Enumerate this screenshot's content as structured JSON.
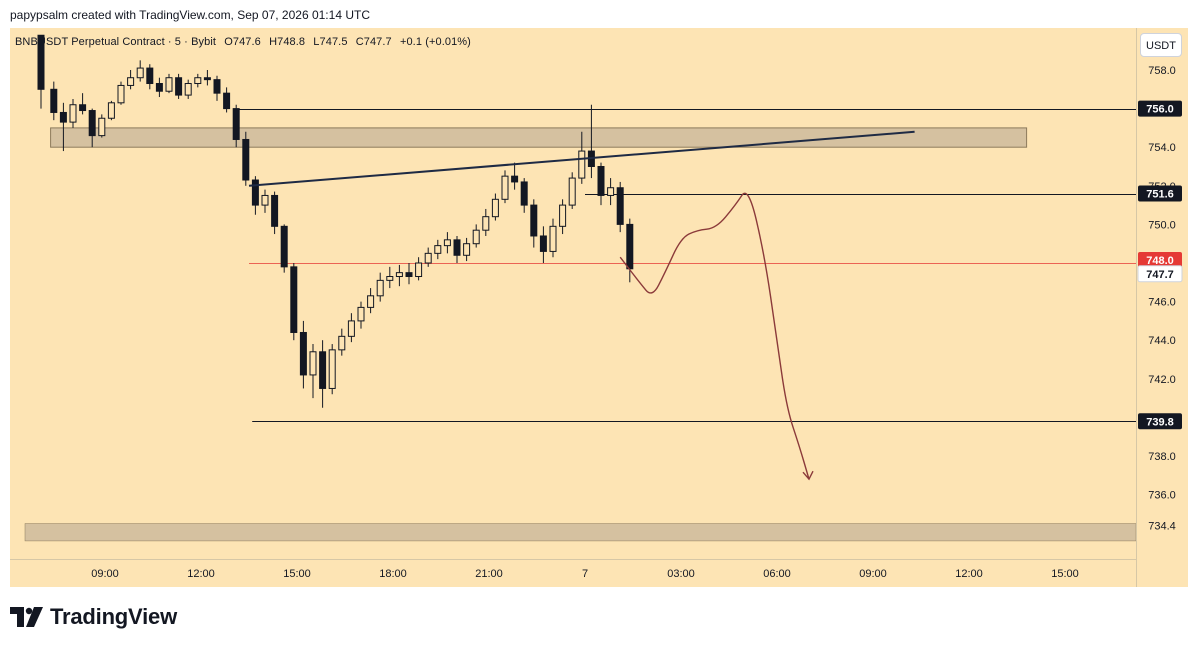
{
  "header": {
    "credit": "papypsalm created with TradingView.com, Sep 07, 2026 01:14 UTC"
  },
  "legend": {
    "symbol": "BNBUSDT Perpetual Contract · 5 · Bybit",
    "open": "O747.6",
    "high": "H748.8",
    "low": "L747.5",
    "close": "C747.7",
    "change": "+0.1 (+0.01%)"
  },
  "currency_button": "USDT",
  "footer": {
    "brand": "TradingView"
  },
  "colors": {
    "background": "#fde4b4",
    "candle_up": "#131722",
    "candle_down": "#131722",
    "zone": "#d5c1a0",
    "last_price_line": "#e53935",
    "drawing": "#8b3a3a",
    "trendline": "#1e2a44"
  },
  "chart_data": {
    "type": "candlestick",
    "symbol": "BNBUSDT",
    "interval": "5",
    "ylim": [
      733.6,
      759.8
    ],
    "y_ticks": [
      758.0,
      754.0,
      752.0,
      750.0,
      746.0,
      744.0,
      742.0,
      738.0,
      736.0,
      734.4
    ],
    "x_ticks": [
      "09:00",
      "12:00",
      "15:00",
      "18:00",
      "21:00",
      "7",
      "03:00",
      "06:00",
      "09:00",
      "12:00",
      "15:00"
    ],
    "price_levels": [
      {
        "value": 756.0,
        "label": "756.0",
        "style": "dark"
      },
      {
        "value": 751.6,
        "label": "751.6",
        "style": "dark"
      },
      {
        "value": 748.0,
        "label": "748.0",
        "style": "red"
      },
      {
        "value": 747.7,
        "label": "747.7",
        "style": "light"
      },
      {
        "value": 739.8,
        "label": "739.8",
        "style": "dark"
      }
    ],
    "zones": [
      {
        "from_hour": 7.3,
        "to_hour": 37.8,
        "low": 754.0,
        "high": 755.0
      },
      {
        "from_hour": 6.5,
        "to_hour": 41.6,
        "low": 733.6,
        "high": 734.5
      }
    ],
    "trendline": {
      "start": [
        13.5,
        752.0
      ],
      "end": [
        34.3,
        754.8
      ]
    },
    "projection_path": [
      [
        25.1,
        748.3
      ],
      [
        25.7,
        747.0
      ],
      [
        26.1,
        746.2
      ],
      [
        26.5,
        747.5
      ],
      [
        27.0,
        749.3
      ],
      [
        27.5,
        749.7
      ],
      [
        28.1,
        749.8
      ],
      [
        28.7,
        751.0
      ],
      [
        29.1,
        752.0
      ],
      [
        29.6,
        748.5
      ],
      [
        30.0,
        744.0
      ],
      [
        30.3,
        740.5
      ],
      [
        30.7,
        738.5
      ],
      [
        31.0,
        736.8
      ]
    ],
    "candles": [
      [
        7.0,
        759.8,
        759.8,
        756.0,
        757.0
      ],
      [
        7.4,
        757.0,
        757.4,
        755.4,
        755.8
      ],
      [
        7.7,
        755.8,
        756.3,
        753.8,
        755.3
      ],
      [
        8.0,
        755.3,
        756.5,
        755.0,
        756.2
      ],
      [
        8.3,
        756.2,
        756.8,
        755.7,
        755.9
      ],
      [
        8.6,
        755.9,
        756.0,
        754.0,
        754.6
      ],
      [
        8.9,
        754.6,
        755.7,
        754.5,
        755.5
      ],
      [
        9.2,
        755.5,
        756.4,
        755.4,
        756.3
      ],
      [
        9.5,
        756.3,
        757.4,
        756.2,
        757.2
      ],
      [
        9.8,
        757.2,
        758.0,
        757.0,
        757.6
      ],
      [
        10.1,
        757.6,
        758.5,
        757.4,
        758.1
      ],
      [
        10.4,
        758.1,
        758.3,
        757.0,
        757.3
      ],
      [
        10.7,
        757.3,
        757.6,
        756.6,
        756.9
      ],
      [
        11.0,
        756.9,
        757.8,
        756.8,
        757.6
      ],
      [
        11.3,
        757.6,
        757.8,
        756.5,
        756.7
      ],
      [
        11.6,
        756.7,
        757.5,
        756.5,
        757.3
      ],
      [
        11.9,
        757.3,
        757.8,
        757.1,
        757.6
      ],
      [
        12.2,
        757.6,
        758.0,
        757.2,
        757.5
      ],
      [
        12.5,
        757.5,
        757.7,
        756.4,
        756.8
      ],
      [
        12.8,
        756.8,
        757.1,
        755.8,
        756.0
      ],
      [
        13.1,
        756.0,
        756.2,
        754.0,
        754.4
      ],
      [
        13.4,
        754.4,
        754.8,
        752.0,
        752.3
      ],
      [
        13.7,
        752.3,
        752.5,
        750.5,
        751.0
      ],
      [
        14.0,
        751.0,
        751.8,
        750.6,
        751.5
      ],
      [
        14.3,
        751.5,
        751.7,
        749.5,
        749.9
      ],
      [
        14.6,
        749.9,
        750.0,
        747.5,
        747.8
      ],
      [
        14.9,
        747.8,
        748.0,
        744.0,
        744.4
      ],
      [
        15.2,
        744.4,
        745.0,
        741.5,
        742.2
      ],
      [
        15.5,
        742.2,
        743.8,
        741.0,
        743.4
      ],
      [
        15.8,
        743.4,
        744.0,
        740.5,
        741.5
      ],
      [
        16.1,
        741.5,
        743.8,
        741.2,
        743.5
      ],
      [
        16.4,
        743.5,
        744.6,
        743.2,
        744.2
      ],
      [
        16.7,
        744.2,
        745.4,
        743.9,
        745.0
      ],
      [
        17.0,
        745.0,
        746.0,
        744.6,
        745.7
      ],
      [
        17.3,
        745.7,
        746.7,
        745.4,
        746.3
      ],
      [
        17.6,
        746.3,
        747.5,
        746.0,
        747.1
      ],
      [
        17.9,
        747.1,
        747.8,
        746.7,
        747.3
      ],
      [
        18.2,
        747.3,
        747.9,
        746.8,
        747.5
      ],
      [
        18.5,
        747.5,
        748.0,
        746.9,
        747.3
      ],
      [
        18.8,
        747.3,
        748.3,
        747.1,
        748.0
      ],
      [
        19.1,
        748.0,
        748.8,
        747.8,
        748.5
      ],
      [
        19.4,
        748.5,
        749.2,
        748.2,
        748.9
      ],
      [
        19.7,
        748.9,
        749.6,
        748.5,
        749.2
      ],
      [
        20.0,
        749.2,
        749.4,
        748.0,
        748.4
      ],
      [
        20.3,
        748.4,
        749.3,
        748.1,
        749.0
      ],
      [
        20.6,
        749.0,
        750.0,
        748.8,
        749.7
      ],
      [
        20.9,
        749.7,
        750.8,
        749.4,
        750.4
      ],
      [
        21.2,
        750.4,
        751.6,
        750.2,
        751.3
      ],
      [
        21.5,
        751.3,
        752.8,
        751.1,
        752.5
      ],
      [
        21.8,
        752.5,
        753.2,
        751.8,
        752.2
      ],
      [
        22.1,
        752.2,
        752.4,
        750.6,
        751.0
      ],
      [
        22.4,
        751.0,
        751.3,
        748.8,
        749.4
      ],
      [
        22.7,
        749.4,
        749.9,
        748.0,
        748.6
      ],
      [
        23.0,
        748.6,
        750.3,
        748.3,
        749.9
      ],
      [
        23.3,
        749.9,
        751.3,
        749.5,
        751.0
      ],
      [
        23.6,
        751.0,
        752.7,
        750.8,
        752.4
      ],
      [
        23.9,
        752.4,
        754.8,
        752.1,
        753.8
      ],
      [
        24.2,
        753.8,
        756.2,
        752.4,
        753.0
      ],
      [
        24.5,
        753.0,
        753.2,
        751.0,
        751.5
      ],
      [
        24.8,
        751.5,
        752.4,
        751.0,
        751.9
      ],
      [
        25.1,
        751.9,
        752.2,
        749.6,
        750.0
      ],
      [
        25.4,
        750.0,
        750.3,
        747.0,
        747.7
      ]
    ]
  }
}
